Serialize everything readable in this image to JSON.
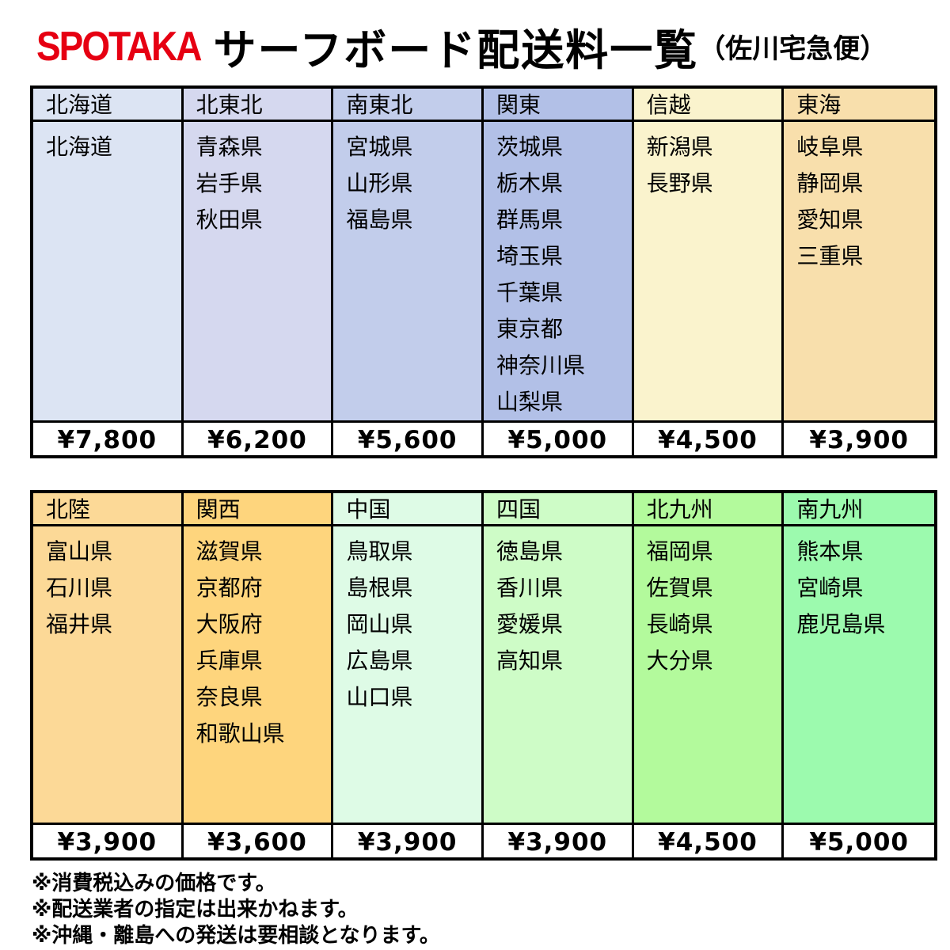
{
  "header": {
    "logo": "SPOTAKA",
    "logo_color": "#e60012",
    "title": "サーフボード配送料一覧",
    "subtitle": "（佐川宅急便）"
  },
  "tables": [
    {
      "name": "east-japan",
      "columns": [
        {
          "region": "北海道",
          "prefectures": [
            "北海道"
          ],
          "price": "¥7,800",
          "color": "#dce4f3"
        },
        {
          "region": "北東北",
          "prefectures": [
            "青森県",
            "岩手県",
            "秋田県"
          ],
          "price": "¥6,200",
          "color": "#d5d8ef"
        },
        {
          "region": "南東北",
          "prefectures": [
            "宮城県",
            "山形県",
            "福島県"
          ],
          "price": "¥5,600",
          "color": "#c2cdeb"
        },
        {
          "region": "関東",
          "prefectures": [
            "茨城県",
            "栃木県",
            "群馬県",
            "埼玉県",
            "千葉県",
            "東京都",
            "神奈川県",
            "山梨県"
          ],
          "price": "¥5,000",
          "color": "#b2c0e7"
        },
        {
          "region": "信越",
          "prefectures": [
            "新潟県",
            "長野県"
          ],
          "price": "¥4,500",
          "color": "#faf3cd"
        },
        {
          "region": "東海",
          "prefectures": [
            "岐阜県",
            "静岡県",
            "愛知県",
            "三重県"
          ],
          "price": "¥3,900",
          "color": "#f8dfac"
        }
      ]
    },
    {
      "name": "west-japan",
      "columns": [
        {
          "region": "北陸",
          "prefectures": [
            "富山県",
            "石川県",
            "福井県"
          ],
          "price": "¥3,900",
          "color": "#fcd997"
        },
        {
          "region": "関西",
          "prefectures": [
            "滋賀県",
            "京都府",
            "大阪府",
            "兵庫県",
            "奈良県",
            "和歌山県"
          ],
          "price": "¥3,600",
          "color": "#fed57d"
        },
        {
          "region": "中国",
          "prefectures": [
            "鳥取県",
            "島根県",
            "岡山県",
            "広島県",
            "山口県"
          ],
          "price": "¥3,900",
          "color": "#defbe6"
        },
        {
          "region": "四国",
          "prefectures": [
            "徳島県",
            "香川県",
            "愛媛県",
            "高知県"
          ],
          "price": "¥3,900",
          "color": "#cefcc7"
        },
        {
          "region": "北九州",
          "prefectures": [
            "福岡県",
            "佐賀県",
            "長崎県",
            "大分県"
          ],
          "price": "¥4,500",
          "color": "#b3fa9c"
        },
        {
          "region": "南九州",
          "prefectures": [
            "熊本県",
            "宮崎県",
            "鹿児島県"
          ],
          "price": "¥5,000",
          "color": "#9cfaae"
        }
      ]
    }
  ],
  "notes": [
    "※消費税込みの価格です。",
    "※配送業者の指定は出来かねます。",
    "※沖縄・離島への発送は要相談となります。"
  ]
}
